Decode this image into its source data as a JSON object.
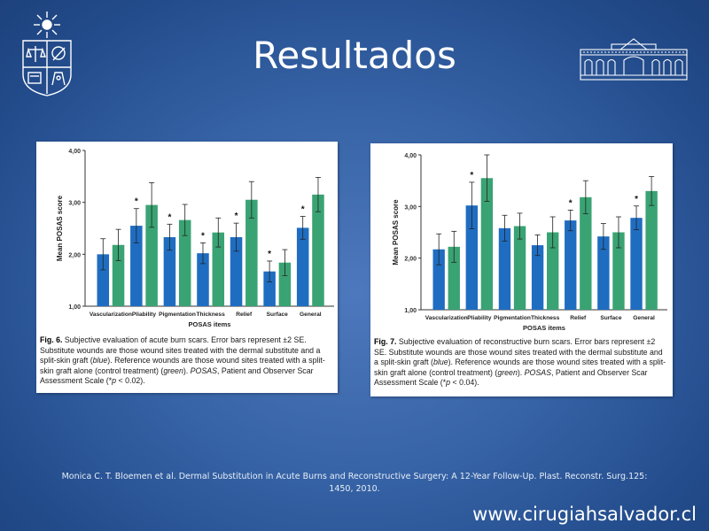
{
  "slide": {
    "title": "Resultados",
    "citation": "Monica C. T. Bloemen et al. Dermal Substitution in Acute Burns and Reconstructive Surgery: A 12-Year Follow-Up. Plast. Reconstr. Surg.125: 1450, 2010.",
    "website": "www.cirugiahsalvador.cl"
  },
  "colors": {
    "blue_bar": "#1f6dc1",
    "green_bar": "#3aa373"
  },
  "captions": {
    "fig6": {
      "label": "Fig. 6.",
      "p1": " Subjective evaluation of acute burn scars. Error bars represent ±2 SE. Substitute wounds are those wound sites treated with the dermal substitute and a split-skin graft (",
      "blue": "blue",
      "p2": "). Reference wounds are those wound sites treated with a split-skin graft alone (control treatment) (",
      "green": "green",
      "p3": "). ",
      "posas": "POSAS",
      "p4": ", Patient and Observer Scar Assessment Scale (*",
      "pvar": "p",
      "p5": " < 0.02)."
    },
    "fig7": {
      "label": "Fig. 7.",
      "p1": " Subjective evaluation of reconstructive burn scars. Error bars represent ±2 SE. Substitute wounds are those wound sites treated with the dermal substitute and a split-skin graft (",
      "blue": "blue",
      "p2": "). Reference wounds are those wound sites treated with a split-skin graft alone (control treatment) (",
      "green": "green",
      "p3": "). ",
      "posas": "POSAS",
      "p4": ", Patient and Observer Scar Assessment Scale (*",
      "pvar": "p",
      "p5": " < 0.04)."
    }
  },
  "chart_data": [
    {
      "type": "bar",
      "xlabel": "POSAS items",
      "ylabel": "Mean POSAS score",
      "ylim": [
        1,
        4
      ],
      "yticks": [
        "1,00",
        "2,00",
        "3,00",
        "4,00"
      ],
      "categories": [
        "Vascularization",
        "Pliability",
        "Pigmentation",
        "Thickness",
        "Relief",
        "Surface",
        "General"
      ],
      "series": [
        {
          "color": "#1f6dc1",
          "values": [
            2.0,
            2.55,
            2.33,
            2.02,
            2.33,
            1.67,
            2.51
          ],
          "error": [
            0.3,
            0.33,
            0.25,
            0.2,
            0.27,
            0.2,
            0.22
          ]
        },
        {
          "color": "#3aa373",
          "values": [
            2.18,
            2.95,
            2.66,
            2.42,
            3.05,
            1.84,
            3.15
          ],
          "error": [
            0.3,
            0.43,
            0.3,
            0.28,
            0.35,
            0.25,
            0.33
          ]
        }
      ],
      "significant": [
        false,
        true,
        true,
        true,
        true,
        true,
        true
      ],
      "grid": false
    },
    {
      "type": "bar",
      "xlabel": "POSAS items",
      "ylabel": "Mean POSAS score",
      "ylim": [
        1,
        4
      ],
      "yticks": [
        "1,00",
        "2,00",
        "3,00",
        "4,00"
      ],
      "categories": [
        "Vascularization",
        "Pliability",
        "Pigmentation",
        "Thickness",
        "Relief",
        "Surface",
        "General"
      ],
      "series": [
        {
          "color": "#1f6dc1",
          "values": [
            2.17,
            3.02,
            2.58,
            2.25,
            2.73,
            2.42,
            2.78
          ],
          "error": [
            0.3,
            0.45,
            0.25,
            0.2,
            0.2,
            0.25,
            0.23
          ]
        },
        {
          "color": "#3aa373",
          "values": [
            2.22,
            3.55,
            2.62,
            2.5,
            3.18,
            2.5,
            3.3
          ],
          "error": [
            0.3,
            0.45,
            0.25,
            0.3,
            0.32,
            0.3,
            0.28
          ]
        }
      ],
      "significant": [
        false,
        true,
        false,
        false,
        true,
        false,
        true
      ],
      "grid": false
    }
  ]
}
